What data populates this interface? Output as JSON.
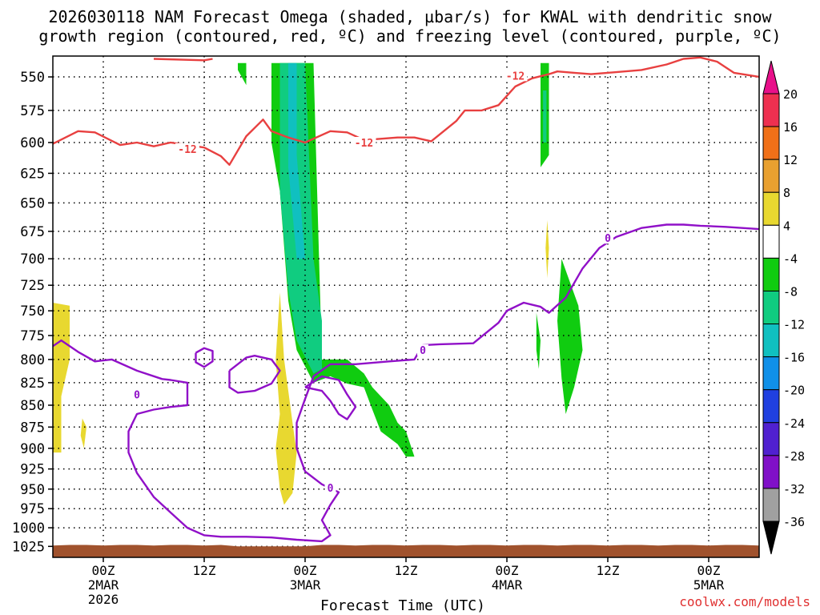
{
  "header": {
    "title_line1": "2026030118 NAM Forecast Omega (shaded, µbar/s) for KWAL with dendritic snow",
    "title_line2": "growth region (contoured, red, ºC) and freezing level (contoured, purple, ºC)"
  },
  "footer": {
    "credit": "coolwx.com/models"
  },
  "chart_data": {
    "type": "heatmap",
    "title": "2026030118 NAM Forecast Omega (shaded, µbar/s) for KWAL with dendritic snow growth region (contoured, red, ºC) and freezing level (contoured, purple, ºC)",
    "xlabel": "Forecast Time (UTC)",
    "ylabel": "",
    "y_scale": "log",
    "y_inverted": true,
    "ylim": [
      1040,
      535
    ],
    "xlim_hours_from_2026030118": [
      0,
      84
    ],
    "y_ticks": [
      550,
      575,
      600,
      625,
      650,
      675,
      700,
      725,
      750,
      775,
      800,
      825,
      850,
      875,
      900,
      925,
      950,
      975,
      1000,
      1025
    ],
    "x_ticks": [
      {
        "label": "00Z",
        "sub1": "2MAR",
        "sub2": "2026",
        "hour": 6
      },
      {
        "label": "12Z",
        "sub1": "",
        "sub2": "",
        "hour": 18
      },
      {
        "label": "00Z",
        "sub1": "3MAR",
        "sub2": "",
        "hour": 30
      },
      {
        "label": "12Z",
        "sub1": "",
        "sub2": "",
        "hour": 42
      },
      {
        "label": "00Z",
        "sub1": "4MAR",
        "sub2": "",
        "hour": 54
      },
      {
        "label": "12Z",
        "sub1": "",
        "sub2": "",
        "hour": 66
      },
      {
        "label": "00Z",
        "sub1": "5MAR",
        "sub2": "",
        "hour": 78
      }
    ],
    "grid": true,
    "colorbar": {
      "labels": [
        "20",
        "16",
        "12",
        "8",
        "4",
        "-4",
        "-8",
        "-12",
        "-16",
        "-20",
        "-24",
        "-28",
        "-32",
        "-36"
      ],
      "colors": [
        "#ee3050",
        "#f07018",
        "#e8a030",
        "#e8d830",
        "#ffffff",
        "#10cc10",
        "#10cc80",
        "#10c0c0",
        "#1090e8",
        "#2040e0",
        "#5020d0",
        "#8010c8",
        "#a0a0a0"
      ],
      "top_arrow_color": "#e8108a",
      "bottom_arrow_color": "#000000"
    },
    "contour_labels": [
      {
        "text": "-12",
        "hour": 16,
        "p": 605,
        "color": "#e84040"
      },
      {
        "text": "-12",
        "hour": 37,
        "p": 600,
        "color": "#e84040"
      },
      {
        "text": "-12",
        "hour": 55,
        "p": 549,
        "color": "#e84040"
      },
      {
        "text": "0",
        "hour": 10,
        "p": 838,
        "color": "#9010c8"
      },
      {
        "text": "0",
        "hour": 33,
        "p": 948,
        "color": "#9010c8"
      },
      {
        "text": "0",
        "hour": 44,
        "p": 790,
        "color": "#9010c8"
      },
      {
        "text": "0",
        "hour": 66,
        "p": 681,
        "color": "#9010c8"
      }
    ],
    "series": [
      {
        "name": "-12",
        "color": "#e84040",
        "points": [
          [
            0,
            601
          ],
          [
            3,
            591
          ],
          [
            5,
            592
          ],
          [
            8,
            602
          ],
          [
            10,
            600
          ],
          [
            12,
            603
          ],
          [
            14,
            600
          ],
          [
            16,
            602
          ],
          [
            18,
            604
          ],
          [
            20,
            611
          ],
          [
            21,
            618
          ],
          [
            23,
            595
          ],
          [
            25,
            582
          ],
          [
            26,
            591
          ],
          [
            28,
            596
          ],
          [
            30,
            600
          ],
          [
            33,
            591
          ],
          [
            35,
            592
          ],
          [
            37,
            598
          ],
          [
            39,
            597
          ],
          [
            41,
            596
          ],
          [
            43,
            596
          ],
          [
            45,
            599
          ],
          [
            48,
            583
          ],
          [
            49,
            575
          ],
          [
            51,
            575
          ],
          [
            53,
            571
          ],
          [
            55,
            557
          ],
          [
            57,
            551
          ],
          [
            59,
            548
          ],
          [
            60,
            546
          ],
          [
            62,
            547
          ],
          [
            64,
            548
          ],
          [
            66,
            547
          ],
          [
            68,
            546
          ],
          [
            70,
            545
          ],
          [
            73,
            541
          ],
          [
            75,
            537
          ],
          [
            77,
            536
          ],
          [
            79,
            539
          ],
          [
            81,
            547
          ],
          [
            84,
            550
          ]
        ]
      },
      {
        "name": "-12",
        "color": "#e84040",
        "points": [
          [
            12,
            537
          ],
          [
            18,
            538
          ],
          [
            19,
            537
          ]
        ]
      },
      {
        "name": "0",
        "color": "#9010c8",
        "points": [
          [
            0,
            786
          ],
          [
            1,
            780
          ],
          [
            3,
            792
          ],
          [
            5,
            802
          ],
          [
            7,
            800
          ],
          [
            10,
            812
          ],
          [
            13,
            821
          ],
          [
            14,
            822
          ],
          [
            16,
            825
          ],
          [
            16,
            850
          ],
          [
            14,
            852
          ],
          [
            12,
            855
          ],
          [
            10,
            860
          ],
          [
            9,
            880
          ],
          [
            9,
            905
          ],
          [
            10,
            930
          ],
          [
            12,
            960
          ],
          [
            14,
            980
          ],
          [
            16,
            1000
          ],
          [
            18,
            1010
          ],
          [
            20,
            1012
          ],
          [
            23,
            1012
          ],
          [
            26,
            1013
          ],
          [
            29,
            1016
          ],
          [
            32,
            1018
          ],
          [
            33,
            1010
          ],
          [
            32,
            990
          ],
          [
            33,
            970
          ],
          [
            34,
            954
          ],
          [
            32,
            944
          ],
          [
            30,
            928
          ],
          [
            29,
            900
          ],
          [
            29,
            870
          ],
          [
            30,
            843
          ],
          [
            31,
            818
          ],
          [
            33,
            805
          ],
          [
            36,
            805
          ],
          [
            40,
            802
          ],
          [
            43,
            800
          ],
          [
            44,
            785
          ],
          [
            46,
            784
          ],
          [
            50,
            783
          ],
          [
            53,
            762
          ],
          [
            54,
            750
          ],
          [
            56,
            742
          ],
          [
            58,
            746
          ],
          [
            59,
            752
          ],
          [
            61,
            737
          ],
          [
            63,
            709
          ],
          [
            65,
            690
          ],
          [
            67,
            680
          ],
          [
            70,
            672
          ],
          [
            73,
            669
          ],
          [
            75,
            669
          ],
          [
            77,
            670
          ],
          [
            80,
            671
          ],
          [
            84,
            673
          ]
        ]
      },
      {
        "name": "0",
        "color": "#9010c8",
        "points": [
          [
            21,
            812
          ],
          [
            23,
            798
          ],
          [
            24,
            796
          ],
          [
            26,
            800
          ],
          [
            27,
            812
          ],
          [
            26,
            826
          ],
          [
            24,
            834
          ],
          [
            22,
            836
          ],
          [
            21,
            830
          ],
          [
            21,
            812
          ]
        ]
      },
      {
        "name": "0",
        "color": "#9010c8",
        "points": [
          [
            17,
            793
          ],
          [
            18,
            788
          ],
          [
            19,
            791
          ],
          [
            19,
            802
          ],
          [
            18,
            808
          ],
          [
            17,
            803
          ],
          [
            17,
            793
          ]
        ]
      },
      {
        "name": "0",
        "color": "#9010c8",
        "points": [
          [
            30,
            830
          ],
          [
            32,
            818
          ],
          [
            34,
            822
          ],
          [
            35,
            838
          ],
          [
            36,
            852
          ],
          [
            35,
            866
          ],
          [
            34,
            860
          ],
          [
            33,
            845
          ],
          [
            32,
            834
          ],
          [
            30,
            830
          ]
        ]
      }
    ],
    "omega_regions": [
      {
        "level": "-4",
        "color": "#10cc10",
        "points": [
          [
            26,
            540
          ],
          [
            31,
            540
          ],
          [
            32,
            800
          ],
          [
            35,
            800
          ],
          [
            37,
            815
          ],
          [
            38,
            830
          ],
          [
            40,
            850
          ],
          [
            41,
            870
          ],
          [
            42,
            880
          ],
          [
            43,
            910
          ],
          [
            42,
            910
          ],
          [
            41,
            895
          ],
          [
            39,
            880
          ],
          [
            38,
            855
          ],
          [
            37,
            830
          ],
          [
            35,
            826
          ],
          [
            33,
            818
          ],
          [
            31,
            825
          ],
          [
            29,
            790
          ],
          [
            28,
            740
          ],
          [
            27,
            640
          ],
          [
            26,
            600
          ],
          [
            26,
            540
          ]
        ]
      },
      {
        "level": "-8",
        "color": "#10cc80",
        "points": [
          [
            27,
            540
          ],
          [
            30,
            540
          ],
          [
            31,
            700
          ],
          [
            32,
            760
          ],
          [
            32,
            810
          ],
          [
            31,
            815
          ],
          [
            29,
            780
          ],
          [
            28,
            730
          ],
          [
            27,
            640
          ],
          [
            27,
            540
          ]
        ]
      },
      {
        "level": "-12",
        "color": "#10c0c0",
        "points": [
          [
            28,
            540
          ],
          [
            29,
            540
          ],
          [
            29,
            610
          ],
          [
            30,
            700
          ],
          [
            29,
            700
          ],
          [
            28,
            620
          ],
          [
            28,
            540
          ]
        ]
      },
      {
        "level": "-4",
        "color": "#10cc10",
        "points": [
          [
            58,
            540
          ],
          [
            59,
            540
          ],
          [
            59,
            610
          ],
          [
            58,
            620
          ],
          [
            58,
            540
          ]
        ]
      },
      {
        "level": "-8",
        "color": "#10cc80",
        "points": [
          [
            58.3,
            560
          ],
          [
            58.7,
            560
          ],
          [
            58.7,
            600
          ],
          [
            58.3,
            600
          ],
          [
            58.3,
            560
          ]
        ]
      },
      {
        "level": "-4",
        "color": "#10cc10",
        "points": [
          [
            60.5,
            700
          ],
          [
            62.5,
            745
          ],
          [
            63,
            790
          ],
          [
            62,
            830
          ],
          [
            61,
            860
          ],
          [
            60.5,
            820
          ],
          [
            60,
            760
          ],
          [
            60.5,
            700
          ]
        ]
      },
      {
        "level": "-4",
        "color": "#10cc10",
        "points": [
          [
            57.5,
            752
          ],
          [
            58,
            780
          ],
          [
            57.8,
            810
          ],
          [
            57.5,
            790
          ],
          [
            57.5,
            752
          ]
        ]
      },
      {
        "level": "-4",
        "color": "#10cc10",
        "points": [
          [
            22,
            540
          ],
          [
            23,
            540
          ],
          [
            23,
            556
          ],
          [
            22,
            545
          ],
          [
            22,
            540
          ]
        ]
      },
      {
        "level": "4",
        "color": "#e8d830",
        "points": [
          [
            0,
            742
          ],
          [
            2,
            745
          ],
          [
            2,
            800
          ],
          [
            1,
            840
          ],
          [
            1,
            905
          ],
          [
            0,
            905
          ],
          [
            0,
            742
          ]
        ]
      },
      {
        "level": "4",
        "color": "#e8d830",
        "points": [
          [
            3.5,
            865
          ],
          [
            4,
            875
          ],
          [
            3.7,
            900
          ],
          [
            3.3,
            885
          ],
          [
            3.5,
            865
          ]
        ]
      },
      {
        "level": "4",
        "color": "#e8d830",
        "points": [
          [
            27,
            732
          ],
          [
            27.5,
            800
          ],
          [
            28.5,
            870
          ],
          [
            29,
            905
          ],
          [
            28.5,
            955
          ],
          [
            27.5,
            970
          ],
          [
            27,
            950
          ],
          [
            26.5,
            900
          ],
          [
            27,
            860
          ],
          [
            26.5,
            800
          ],
          [
            27,
            732
          ]
        ]
      },
      {
        "level": "4",
        "color": "#e8d830",
        "points": [
          [
            58.8,
            665
          ],
          [
            59,
            690
          ],
          [
            58.8,
            718
          ],
          [
            58.6,
            690
          ],
          [
            58.8,
            665
          ]
        ]
      }
    ],
    "terrain": {
      "color": "#a0522d",
      "p_top": 1023
    }
  }
}
